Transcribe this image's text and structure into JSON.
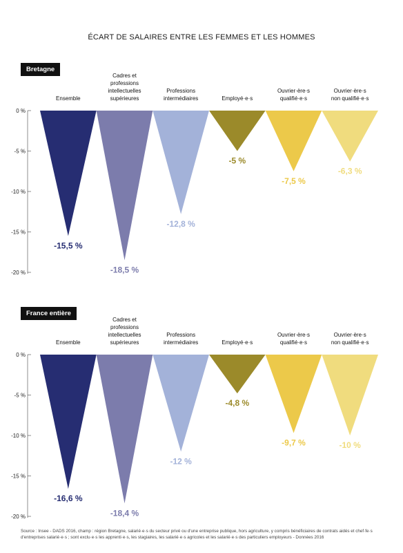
{
  "title": "ÉCART DE SALAIRES ENTRE LES FEMMES ET LES HOMMES",
  "colors": [
    "#262d72",
    "#7c7cac",
    "#a3b2d9",
    "#9b8a2a",
    "#ecc94a",
    "#f0dc7e"
  ],
  "source": "Source : Insee - DADS 2016, champ : région Bretagne, salarié·e·s du secteur privé ou d'une entreprise publique, hors agriculture, y compris bénéficiaires de contrats aidés et chef·fe·s d'entreprises salarié·e·s ; sont exclu·e·s les apprenti·e·s, les stagiaires, les salarié·e·s agricoles et les salarié·e·s des particuliers employeurs - Données 2016",
  "chart_data": [
    {
      "type": "bar",
      "region": "Bretagne",
      "categories": [
        [
          "Ensemble"
        ],
        [
          "Cadres et",
          "professions",
          "intellectuelles",
          "supérieures"
        ],
        [
          "Professions",
          "intermédiaires"
        ],
        [
          "Employé·e·s"
        ],
        [
          "Ouvrier·ère·s",
          "qualifié·e·s"
        ],
        [
          "Ouvrier·ère·s",
          "non qualifié·e·s"
        ]
      ],
      "values": [
        -15.5,
        -18.5,
        -12.8,
        -5,
        -7.5,
        -6.3
      ],
      "value_labels": [
        "-15,5 %",
        "-18,5 %",
        "-12,8 %",
        "-5 %",
        "-7,5 %",
        "-6,3 %"
      ],
      "ylim": [
        -20,
        0
      ],
      "yticks": [
        0,
        -5,
        -10,
        -15,
        -20
      ],
      "ytick_labels": [
        "0 %",
        "-5 %",
        "-10 %",
        "-15 %",
        "-20 %"
      ]
    },
    {
      "type": "bar",
      "region": "France entière",
      "categories": [
        [
          "Ensemble"
        ],
        [
          "Cadres et",
          "professions",
          "intellectuelles",
          "supérieures"
        ],
        [
          "Professions",
          "intermédiaires"
        ],
        [
          "Employé·e·s"
        ],
        [
          "Ouvrier·ère·s",
          "qualifié·e·s"
        ],
        [
          "Ouvrier·ère·s",
          "non qualifié·e·s"
        ]
      ],
      "values": [
        -16.6,
        -18.4,
        -12,
        -4.8,
        -9.7,
        -10
      ],
      "value_labels": [
        "-16,6 %",
        "-18,4 %",
        "-12 %",
        "-4,8 %",
        "-9,7 %",
        "-10 %"
      ],
      "ylim": [
        -20,
        0
      ],
      "yticks": [
        0,
        -5,
        -10,
        -15,
        -20
      ],
      "ytick_labels": [
        "0 %",
        "-5 %",
        "-10 %",
        "-15 %",
        "-20 %"
      ]
    }
  ]
}
